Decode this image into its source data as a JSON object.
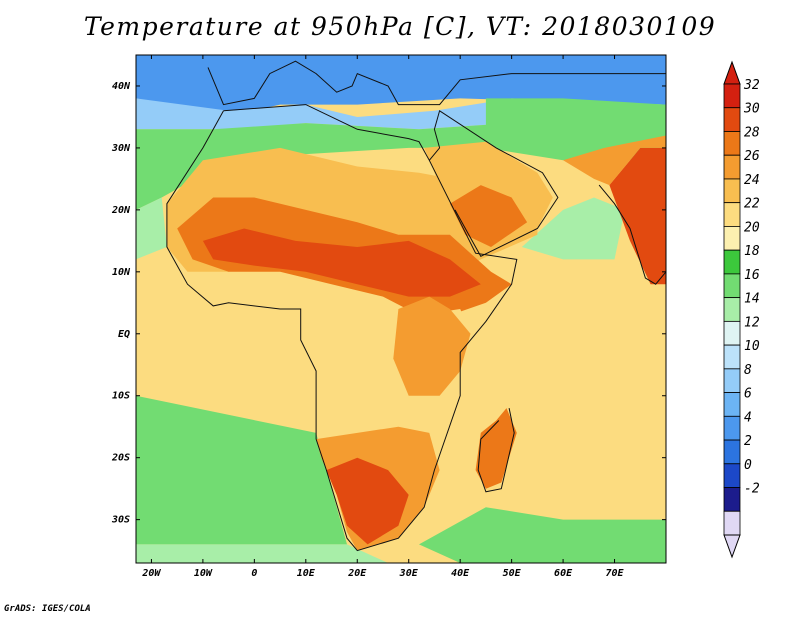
{
  "title": "Temperature at 950hPa [C], VT: 2018030109",
  "footer": "GrADS: IGES/COLA",
  "map": {
    "variable": "Temperature at 950hPa",
    "units": "C",
    "valid_time": "2018030109",
    "lon_range": [
      -23,
      80
    ],
    "lat_range": [
      -37,
      45
    ],
    "lat_labels": [
      {
        "lat": 40,
        "text": "40N"
      },
      {
        "lat": 30,
        "text": "30N"
      },
      {
        "lat": 20,
        "text": "20N"
      },
      {
        "lat": 10,
        "text": "10N"
      },
      {
        "lat": 0,
        "text": "EQ"
      },
      {
        "lat": -10,
        "text": "10S"
      },
      {
        "lat": -20,
        "text": "20S"
      },
      {
        "lat": -30,
        "text": "30S"
      }
    ],
    "lon_labels": [
      {
        "lon": -20,
        "text": "20W"
      },
      {
        "lon": -10,
        "text": "10W"
      },
      {
        "lon": 0,
        "text": "0"
      },
      {
        "lon": 10,
        "text": "10E"
      },
      {
        "lon": 20,
        "text": "20E"
      },
      {
        "lon": 30,
        "text": "30E"
      },
      {
        "lon": 40,
        "text": "40E"
      },
      {
        "lon": 50,
        "text": "50E"
      },
      {
        "lon": 60,
        "text": "60E"
      },
      {
        "lon": 70,
        "text": "70E"
      }
    ]
  },
  "colorbar": {
    "labels": [
      "32",
      "30",
      "28",
      "26",
      "24",
      "22",
      "20",
      "18",
      "16",
      "14",
      "12",
      "10",
      "8",
      "6",
      "4",
      "2",
      "0",
      "-2"
    ],
    "colors": [
      "#e0d8f5",
      "#1c1c8c",
      "#1c48c8",
      "#2c74e0",
      "#4c98ee",
      "#6cb4f4",
      "#94ccf8",
      "#bce2fa",
      "#dff4f3",
      "#a8eea8",
      "#72dc72",
      "#3cc83c",
      "#fcf0b0",
      "#fcdc80",
      "#f8be50",
      "#f49c30",
      "#ec7818",
      "#e24a10",
      "#d42010"
    ]
  },
  "regions": [
    {
      "name": "north-ocean-cold",
      "color": "#4c98ee",
      "points": [
        [
          -23,
          45
        ],
        [
          80,
          45
        ],
        [
          80,
          37
        ],
        [
          40,
          38
        ],
        [
          20,
          37
        ],
        [
          5,
          37
        ],
        [
          -6,
          35
        ],
        [
          -23,
          38
        ]
      ]
    },
    {
      "name": "mediterranean-cool",
      "color": "#94ccf8",
      "points": [
        [
          -23,
          38
        ],
        [
          -5,
          36
        ],
        [
          10,
          37
        ],
        [
          20,
          35
        ],
        [
          35,
          36
        ],
        [
          50,
          38
        ],
        [
          80,
          37
        ],
        [
          80,
          33
        ],
        [
          50,
          34
        ],
        [
          32,
          33
        ],
        [
          10,
          34
        ],
        [
          -5,
          33
        ],
        [
          -23,
          33
        ]
      ]
    },
    {
      "name": "north-green",
      "color": "#72dc72",
      "points": [
        [
          -23,
          33
        ],
        [
          -8,
          33
        ],
        [
          10,
          34
        ],
        [
          32,
          33
        ],
        [
          50,
          34
        ],
        [
          80,
          33
        ],
        [
          80,
          28
        ],
        [
          60,
          28
        ],
        [
          45,
          30
        ],
        [
          30,
          30
        ],
        [
          10,
          29
        ],
        [
          -5,
          28
        ],
        [
          -18,
          22
        ],
        [
          -23,
          20
        ]
      ]
    },
    {
      "name": "north-atlantic-green",
      "color": "#a8eea8",
      "points": [
        [
          -23,
          20
        ],
        [
          -18,
          22
        ],
        [
          -17,
          14
        ],
        [
          -23,
          12
        ]
      ]
    },
    {
      "name": "atlantic-yellow",
      "color": "#fcdc80",
      "points": [
        [
          -23,
          12
        ],
        [
          -17,
          14
        ],
        [
          -13,
          8
        ],
        [
          -7,
          4
        ],
        [
          5,
          4
        ],
        [
          9,
          2
        ],
        [
          10,
          -8
        ],
        [
          12,
          -16
        ],
        [
          -23,
          -10
        ]
      ]
    },
    {
      "name": "south-atlantic-green",
      "color": "#72dc72",
      "points": [
        [
          -23,
          -10
        ],
        [
          12,
          -16
        ],
        [
          14,
          -22
        ],
        [
          16,
          -28
        ],
        [
          18,
          -34
        ],
        [
          -23,
          -34
        ]
      ]
    },
    {
      "name": "south-pale",
      "color": "#a8eea8",
      "points": [
        [
          -23,
          -34
        ],
        [
          18,
          -34
        ],
        [
          26,
          -37
        ],
        [
          -23,
          -37
        ]
      ]
    },
    {
      "name": "indian-ocean-yellow",
      "color": "#fcdc80",
      "points": [
        [
          51,
          12
        ],
        [
          60,
          15
        ],
        [
          70,
          12
        ],
        [
          80,
          10
        ],
        [
          80,
          -30
        ],
        [
          60,
          -30
        ],
        [
          45,
          -28
        ],
        [
          33,
          -28
        ],
        [
          35,
          -15
        ],
        [
          40,
          -4
        ],
        [
          48,
          3
        ]
      ]
    },
    {
      "name": "indian-south-green",
      "color": "#72dc72",
      "points": [
        [
          45,
          -28
        ],
        [
          60,
          -30
        ],
        [
          80,
          -30
        ],
        [
          80,
          -37
        ],
        [
          40,
          -37
        ],
        [
          32,
          -34
        ]
      ]
    },
    {
      "name": "arabian-sea",
      "color": "#a8eea8",
      "points": [
        [
          52,
          14
        ],
        [
          60,
          20
        ],
        [
          66,
          22
        ],
        [
          72,
          20
        ],
        [
          70,
          12
        ],
        [
          60,
          12
        ]
      ]
    },
    {
      "name": "sahara-warm",
      "color": "#f8be50",
      "points": [
        [
          -17,
          21
        ],
        [
          -10,
          28
        ],
        [
          5,
          30
        ],
        [
          20,
          27
        ],
        [
          32,
          26
        ],
        [
          45,
          24
        ],
        [
          55,
          22
        ],
        [
          55,
          16
        ],
        [
          44,
          12
        ],
        [
          40,
          10
        ],
        [
          30,
          10
        ],
        [
          15,
          14
        ],
        [
          5,
          12
        ],
        [
          -5,
          10
        ],
        [
          -13,
          10
        ],
        [
          -17,
          14
        ]
      ]
    },
    {
      "name": "west-africa-hot",
      "color": "#ec7818",
      "points": [
        [
          -15,
          17
        ],
        [
          -8,
          22
        ],
        [
          0,
          22
        ],
        [
          10,
          20
        ],
        [
          20,
          18
        ],
        [
          28,
          16
        ],
        [
          38,
          16
        ],
        [
          46,
          10
        ],
        [
          50,
          8
        ],
        [
          45,
          5
        ],
        [
          38,
          3
        ],
        [
          32,
          3
        ],
        [
          25,
          6
        ],
        [
          15,
          8
        ],
        [
          5,
          10
        ],
        [
          -5,
          10
        ],
        [
          -12,
          12
        ]
      ]
    },
    {
      "name": "sahel-core",
      "color": "#e24a10",
      "points": [
        [
          -10,
          15
        ],
        [
          -2,
          17
        ],
        [
          8,
          15
        ],
        [
          20,
          14
        ],
        [
          30,
          15
        ],
        [
          38,
          12
        ],
        [
          44,
          8
        ],
        [
          38,
          6
        ],
        [
          30,
          6
        ],
        [
          20,
          8
        ],
        [
          10,
          10
        ],
        [
          0,
          11
        ],
        [
          -8,
          12
        ]
      ]
    },
    {
      "name": "central-africa",
      "color": "#fcdc80",
      "points": [
        [
          -7,
          5
        ],
        [
          5,
          5
        ],
        [
          10,
          2
        ],
        [
          12,
          -5
        ],
        [
          14,
          -12
        ],
        [
          20,
          -16
        ],
        [
          30,
          -16
        ],
        [
          38,
          -10
        ],
        [
          40,
          -4
        ],
        [
          42,
          0
        ],
        [
          40,
          4
        ],
        [
          32,
          3
        ],
        [
          25,
          4
        ],
        [
          15,
          6
        ],
        [
          5,
          6
        ]
      ]
    },
    {
      "name": "east-africa-hot",
      "color": "#f49c30",
      "points": [
        [
          28,
          4
        ],
        [
          34,
          6
        ],
        [
          38,
          4
        ],
        [
          42,
          0
        ],
        [
          40,
          -6
        ],
        [
          36,
          -10
        ],
        [
          30,
          -10
        ],
        [
          27,
          -4
        ]
      ]
    },
    {
      "name": "southern-africa-warm",
      "color": "#f49c30",
      "points": [
        [
          12,
          -17
        ],
        [
          20,
          -16
        ],
        [
          28,
          -15
        ],
        [
          34,
          -16
        ],
        [
          36,
          -22
        ],
        [
          33,
          -28
        ],
        [
          28,
          -33
        ],
        [
          20,
          -35
        ],
        [
          18,
          -32
        ],
        [
          16,
          -26
        ],
        [
          13,
          -20
        ]
      ]
    },
    {
      "name": "southern-africa-hot",
      "color": "#e24a10",
      "points": [
        [
          14,
          -22
        ],
        [
          20,
          -20
        ],
        [
          26,
          -22
        ],
        [
          30,
          -26
        ],
        [
          28,
          -31
        ],
        [
          22,
          -34
        ],
        [
          18,
          -31
        ],
        [
          16,
          -26
        ]
      ]
    },
    {
      "name": "madagascar",
      "color": "#ec7818",
      "points": [
        [
          49,
          -12
        ],
        [
          51,
          -16
        ],
        [
          48,
          -24
        ],
        [
          45,
          -25
        ],
        [
          43,
          -22
        ],
        [
          44,
          -16
        ],
        [
          47,
          -14
        ]
      ]
    },
    {
      "name": "arabia-warm",
      "color": "#f8be50",
      "points": [
        [
          33,
          30
        ],
        [
          45,
          31
        ],
        [
          55,
          26
        ],
        [
          58,
          22
        ],
        [
          55,
          17
        ],
        [
          45,
          13
        ],
        [
          40,
          18
        ],
        [
          36,
          24
        ]
      ]
    },
    {
      "name": "arabia-hot",
      "color": "#ec7818",
      "points": [
        [
          38,
          21
        ],
        [
          44,
          24
        ],
        [
          50,
          22
        ],
        [
          53,
          18
        ],
        [
          46,
          14
        ],
        [
          41,
          16
        ]
      ]
    },
    {
      "name": "india-hot",
      "color": "#e24a10",
      "points": [
        [
          69,
          24
        ],
        [
          75,
          30
        ],
        [
          80,
          30
        ],
        [
          80,
          8
        ],
        [
          77,
          8
        ],
        [
          73,
          15
        ]
      ]
    },
    {
      "name": "india-warm",
      "color": "#f49c30",
      "points": [
        [
          60,
          28
        ],
        [
          68,
          30
        ],
        [
          75,
          32
        ],
        [
          80,
          32
        ],
        [
          80,
          30
        ],
        [
          75,
          30
        ],
        [
          69,
          24
        ],
        [
          66,
          25
        ]
      ]
    },
    {
      "name": "persia-green",
      "color": "#72dc72",
      "points": [
        [
          45,
          38
        ],
        [
          60,
          38
        ],
        [
          80,
          37
        ],
        [
          80,
          32
        ],
        [
          68,
          30
        ],
        [
          55,
          30
        ],
        [
          45,
          32
        ]
      ]
    }
  ],
  "land_outlines": [
    {
      "name": "africa-coastline",
      "points": [
        [
          -6,
          36
        ],
        [
          10,
          37
        ],
        [
          20,
          33
        ],
        [
          30,
          31.5
        ],
        [
          32,
          31
        ],
        [
          34,
          28
        ],
        [
          43,
          13
        ],
        [
          51,
          12
        ],
        [
          50,
          8
        ],
        [
          45,
          2
        ],
        [
          40,
          -3
        ],
        [
          40,
          -10
        ],
        [
          35,
          -22
        ],
        [
          33,
          -28
        ],
        [
          28,
          -33
        ],
        [
          20,
          -35
        ],
        [
          18,
          -33
        ],
        [
          14,
          -22
        ],
        [
          12,
          -17
        ],
        [
          12,
          -6
        ],
        [
          9,
          -1
        ],
        [
          9,
          4
        ],
        [
          5,
          4
        ],
        [
          -5,
          5
        ],
        [
          -8,
          4.5
        ],
        [
          -13,
          8
        ],
        [
          -17,
          14
        ],
        [
          -17,
          21
        ],
        [
          -10,
          30
        ],
        [
          -6,
          36
        ]
      ]
    },
    {
      "name": "madagascar-coastline",
      "points": [
        [
          49.5,
          -12
        ],
        [
          50.5,
          -16
        ],
        [
          48,
          -25
        ],
        [
          45,
          -25.5
        ],
        [
          43.5,
          -22
        ],
        [
          44,
          -17
        ],
        [
          47.5,
          -14
        ]
      ]
    },
    {
      "name": "arabia-coastline",
      "points": [
        [
          34,
          28
        ],
        [
          36,
          30
        ],
        [
          35,
          33
        ],
        [
          36,
          36
        ],
        [
          47,
          30
        ],
        [
          56,
          26
        ],
        [
          59,
          22
        ],
        [
          55,
          17
        ],
        [
          44,
          12.5
        ],
        [
          43,
          14
        ],
        [
          39,
          20
        ]
      ]
    },
    {
      "name": "india-coastline",
      "points": [
        [
          67,
          24
        ],
        [
          70,
          21
        ],
        [
          73,
          17
        ],
        [
          76,
          9
        ],
        [
          78,
          8
        ],
        [
          80,
          10
        ],
        [
          80,
          30
        ]
      ]
    },
    {
      "name": "europe-coastline",
      "points": [
        [
          -9,
          43
        ],
        [
          -6,
          37
        ],
        [
          0,
          38
        ],
        [
          3,
          42
        ],
        [
          8,
          44
        ],
        [
          12,
          42
        ],
        [
          16,
          39
        ],
        [
          19,
          40
        ],
        [
          20,
          42
        ],
        [
          26,
          40
        ],
        [
          28,
          37
        ],
        [
          36,
          37
        ],
        [
          40,
          41
        ],
        [
          50,
          42
        ],
        [
          55,
          42
        ],
        [
          80,
          42
        ]
      ]
    }
  ]
}
